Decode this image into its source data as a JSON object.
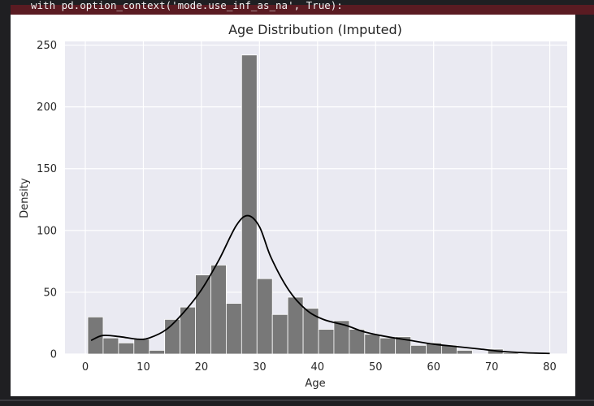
{
  "output": {
    "warning_line": "with pd.option_context('mode.use_inf_as_na', True):"
  },
  "chart_data": {
    "type": "bar",
    "title": "Age Distribution (Imputed)",
    "xlabel": "Age",
    "ylabel": "Density",
    "xlim": [
      -3.5,
      83
    ],
    "ylim": [
      0,
      253
    ],
    "xticks": [
      0,
      10,
      20,
      30,
      40,
      50,
      60,
      70,
      80
    ],
    "yticks": [
      0,
      50,
      100,
      150,
      200,
      250
    ],
    "grid": true,
    "bin_width": 2.65,
    "bin_start": 0.42,
    "values": [
      30,
      13,
      9,
      12,
      3,
      28,
      38,
      64,
      72,
      41,
      242,
      61,
      32,
      46,
      37,
      20,
      27,
      20,
      16,
      13,
      14,
      7,
      9,
      7,
      3,
      0,
      4,
      1,
      0,
      1
    ],
    "kde": [
      [
        1,
        11
      ],
      [
        3,
        15
      ],
      [
        6,
        14
      ],
      [
        9,
        12
      ],
      [
        11,
        13
      ],
      [
        14,
        20
      ],
      [
        17,
        34
      ],
      [
        20,
        52
      ],
      [
        23,
        76
      ],
      [
        26,
        104
      ],
      [
        28,
        112
      ],
      [
        30,
        103
      ],
      [
        32,
        78
      ],
      [
        35,
        52
      ],
      [
        38,
        36
      ],
      [
        41,
        28
      ],
      [
        45,
        23
      ],
      [
        48,
        18
      ],
      [
        52,
        14
      ],
      [
        56,
        11
      ],
      [
        60,
        8
      ],
      [
        64,
        6
      ],
      [
        68,
        4
      ],
      [
        72,
        2
      ],
      [
        76,
        1
      ],
      [
        80,
        0.5
      ]
    ],
    "bar_color": "#787878",
    "line_color": "#000000",
    "plot_bg": "#eaeaf2"
  }
}
